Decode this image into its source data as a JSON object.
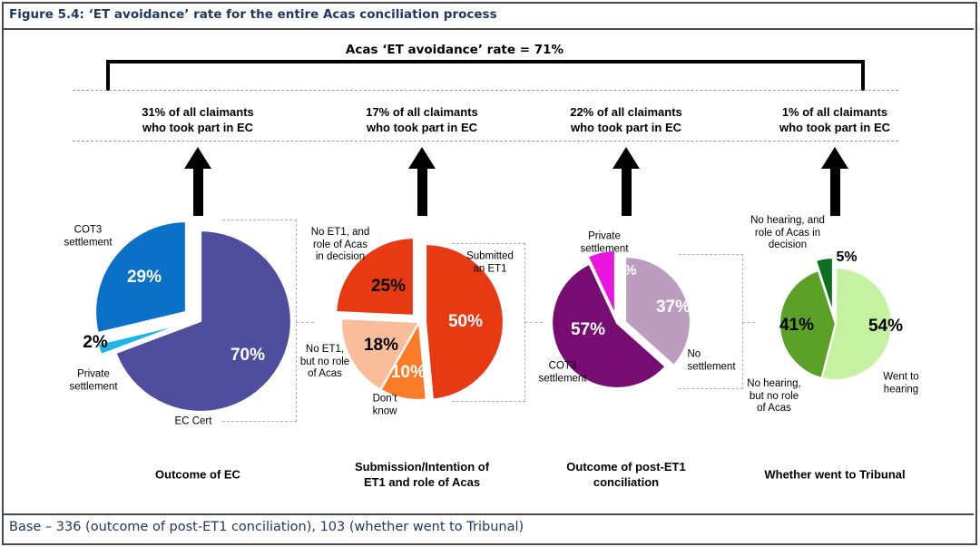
{
  "figure": {
    "title": "Figure 5.4: ‘ET avoidance’ rate for the entire Acas conciliation process",
    "bracket_label": "Acas ‘ET avoidance’ rate = 71%",
    "base_note": "Base – 336 (outcome of post-ET1 conciliation), 103 (whether went to Tribunal)"
  },
  "columns": [
    {
      "claim": "31% of all claimants\nwho took part in EC",
      "caption": "Outcome of EC"
    },
    {
      "claim": "17% of all claimants\nwho took part in EC",
      "caption": "Submission/Intention of\nET1 and role of Acas"
    },
    {
      "claim": "22% of all claimants\nwho took part in EC",
      "caption": "Outcome of post-ET1\nconciliation"
    },
    {
      "claim": "1% of all claimants\nwho took part in EC",
      "caption": "Whether went to Tribunal"
    }
  ],
  "chart_data": [
    {
      "type": "pie",
      "title": "Outcome of EC",
      "slices": [
        {
          "label": "EC Cert",
          "label_display": "EC Cert",
          "value": 70,
          "display": "70%",
          "color": "#4F4E9E",
          "explode": [
            6,
            2
          ]
        },
        {
          "label": "Private settlement",
          "label_display": "Private\nsettlement",
          "value": 2,
          "display": "2%",
          "color": "#1FB4E9",
          "explode": [
            -10,
            4
          ]
        },
        {
          "label": "COT3 settlement",
          "label_display": "COT3\nsettlement",
          "value": 29,
          "display": "29%",
          "color": "#0B70C7",
          "explode": [
            -10,
            -8
          ]
        }
      ]
    },
    {
      "type": "pie",
      "title": "Submission/Intention of ET1 and role of Acas",
      "slices": [
        {
          "label": "Submitted an ET1",
          "label_display": "Submitted\nan ET1",
          "value": 50,
          "display": "50%",
          "color": "#E83A12",
          "explode": [
            7,
            0
          ]
        },
        {
          "label": "Don’t know",
          "label_display": "Don’t\nknow",
          "value": 10,
          "display": "10%",
          "color": "#FA7B28",
          "explode": [
            0,
            0
          ]
        },
        {
          "label": "No ET1, but no role of Acas",
          "label_display": "No ET1,\nbut no role\nof Acas",
          "value": 18,
          "display": "18%",
          "color": "#F9BD9A",
          "explode": [
            0,
            0
          ]
        },
        {
          "label": "No ET1, and role of Acas in decision",
          "label_display": "No ET1, and\nrole of Acas\nin decision",
          "value": 25,
          "display": "25%",
          "color": "#E83A12",
          "explode": [
            -6,
            -7
          ]
        }
      ]
    },
    {
      "type": "pie",
      "title": "Outcome of post-ET1 conciliation",
      "slices": [
        {
          "label": "No settlement",
          "label_display": "No\nsettlement",
          "value": 37,
          "display": "37%",
          "color": "#BC9DBF",
          "explode": [
            9,
            -1
          ]
        },
        {
          "label": "COT3 settlement",
          "label_display": "COT3\nsettlement",
          "value": 57,
          "display": "57%",
          "color": "#770D73",
          "explode": [
            0,
            0
          ]
        },
        {
          "label": "Private settlement",
          "label_display": "Private\nsettlement",
          "value": 7,
          "display": "7%",
          "color": "#E816DE",
          "explode": [
            -2,
            -8
          ]
        }
      ]
    },
    {
      "type": "pie",
      "title": "Whether went to Tribunal",
      "slices": [
        {
          "label": "Went to hearing",
          "label_display": "Went to\nhearing",
          "value": 54,
          "display": "54%",
          "color": "#C4F2A0",
          "explode": [
            0,
            0
          ]
        },
        {
          "label": "No hearing, but no role of Acas",
          "label_display": "No hearing,\nbut no role\nof Acas",
          "value": 41,
          "display": "41%",
          "color": "#5CA127",
          "explode": [
            0,
            0
          ]
        },
        {
          "label": "No hearing, and role of Acas in decision",
          "label_display": "No hearing, and\nrole of Acas in\ndecision",
          "value": 5,
          "display": "5%",
          "color": "#0E6E22",
          "explode": [
            -3,
            -11
          ]
        }
      ]
    }
  ]
}
